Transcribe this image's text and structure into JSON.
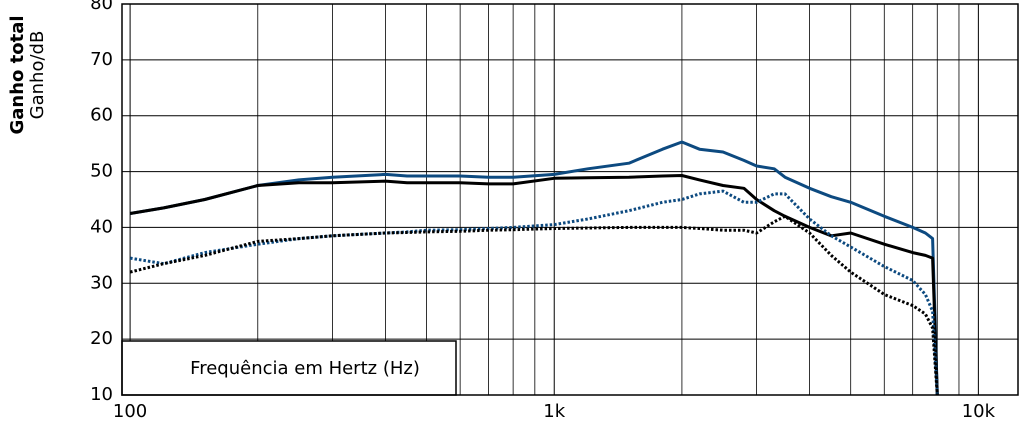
{
  "chart_data": {
    "type": "line",
    "ylabel": "Ganho total",
    "ylabel_unit": "Ganho/dB",
    "xlabel": "Frequência em Hertz (Hz)",
    "log_x": true,
    "xlim": [
      95.7,
      12400
    ],
    "ylim": [
      10,
      80
    ],
    "xticks": [
      100,
      {
        "value": 1000,
        "label": "1k"
      },
      {
        "value": 10000,
        "label": "10k"
      }
    ],
    "x_minor_grid": [
      200,
      300,
      400,
      500,
      600,
      700,
      800,
      900,
      2000,
      3000,
      4000,
      5000,
      6000,
      7000,
      8000,
      9000
    ],
    "yticks": [
      10,
      20,
      30,
      40,
      50,
      60,
      70,
      80
    ],
    "grid": true,
    "x": [
      100,
      120,
      150,
      200,
      250,
      300,
      400,
      450,
      500,
      600,
      700,
      800,
      1000,
      1200,
      1500,
      1800,
      2000,
      2200,
      2500,
      2800,
      3000,
      3300,
      3500,
      4000,
      4500,
      5000,
      6000,
      7000,
      7500,
      7800,
      8000
    ],
    "series": [
      {
        "color": "#0d4a80",
        "style": "solid",
        "values": [
          42.5,
          43.5,
          45,
          47.5,
          48.5,
          49,
          49.5,
          49.2,
          49.2,
          49.2,
          49,
          49,
          49.5,
          50.5,
          51.5,
          54,
          55.3,
          54,
          53.5,
          52,
          51,
          50.5,
          49,
          47,
          45.5,
          44.5,
          42,
          40,
          39,
          38,
          10
        ]
      },
      {
        "color": "#000000",
        "style": "solid",
        "values": [
          42.5,
          43.5,
          45,
          47.5,
          48,
          48,
          48.3,
          48,
          48,
          48,
          47.8,
          47.8,
          48.8,
          48.9,
          49,
          49.2,
          49.3,
          48.5,
          47.5,
          47,
          45,
          43,
          42,
          40,
          38.5,
          39,
          37,
          35.5,
          35,
          34.5,
          10
        ]
      },
      {
        "color": "#0d4a80",
        "style": "dotted",
        "values": [
          34.5,
          33.5,
          35.5,
          37,
          38,
          38.5,
          39,
          39.2,
          39.5,
          39.6,
          39.8,
          40,
          40.5,
          41.5,
          43,
          44.5,
          45,
          46,
          46.5,
          44.5,
          44.5,
          46,
          46,
          41.5,
          38.5,
          36.5,
          33,
          30.5,
          28,
          25,
          10
        ]
      },
      {
        "color": "#000000",
        "style": "dotted",
        "values": [
          32,
          33.5,
          35,
          37.5,
          38,
          38.5,
          39,
          39.1,
          39.2,
          39.3,
          39.5,
          39.6,
          39.8,
          39.9,
          40,
          40,
          40,
          39.8,
          39.5,
          39.5,
          39,
          41,
          42,
          39,
          35,
          32,
          28,
          26,
          24.5,
          22,
          10
        ]
      }
    ]
  }
}
